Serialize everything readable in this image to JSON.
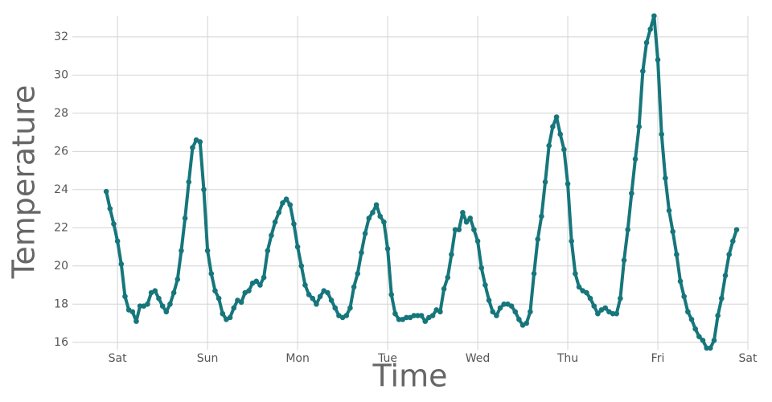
{
  "chart_data": {
    "type": "line",
    "x_label": "Time",
    "y_label": "Temperature",
    "x": [
      -3,
      -2,
      -1,
      0,
      1,
      2,
      3,
      4,
      5,
      6,
      7,
      8,
      9,
      10,
      11,
      12,
      13,
      14,
      15,
      16,
      17,
      18,
      19,
      20,
      21,
      22,
      23,
      24,
      25,
      26,
      27,
      28,
      29,
      30,
      31,
      32,
      33,
      34,
      35,
      36,
      37,
      38,
      39,
      40,
      41,
      42,
      43,
      44,
      45,
      46,
      47,
      48,
      49,
      50,
      51,
      52,
      53,
      54,
      55,
      56,
      57,
      58,
      59,
      60,
      61,
      62,
      63,
      64,
      65,
      66,
      67,
      68,
      69,
      70,
      71,
      72,
      73,
      74,
      75,
      76,
      77,
      78,
      79,
      80,
      81,
      82,
      83,
      84,
      85,
      86,
      87,
      88,
      89,
      90,
      91,
      92,
      93,
      94,
      95,
      96,
      97,
      98,
      99,
      100,
      101,
      102,
      103,
      104,
      105,
      106,
      107,
      108,
      109,
      110,
      111,
      112,
      113,
      114,
      115,
      116,
      117,
      118,
      119,
      120,
      121,
      122,
      123,
      124,
      125,
      126,
      127,
      128,
      129,
      130,
      131,
      132,
      133,
      134,
      135,
      136,
      137,
      138,
      139,
      140,
      141,
      142,
      143,
      144,
      145,
      146,
      147,
      148,
      149,
      150,
      151,
      152,
      153,
      154,
      155,
      156,
      157,
      158,
      159,
      160,
      161,
      162,
      163,
      164,
      165
    ],
    "series": [
      {
        "color": "#16767b",
        "values": [
          23.9,
          23.0,
          22.2,
          21.3,
          20.1,
          18.4,
          17.7,
          17.6,
          17.1,
          17.9,
          17.9,
          18.0,
          18.6,
          18.7,
          18.3,
          17.9,
          17.6,
          18.0,
          18.6,
          19.3,
          20.8,
          22.5,
          24.4,
          26.2,
          26.6,
          26.5,
          24.0,
          20.8,
          19.6,
          18.7,
          18.3,
          17.5,
          17.2,
          17.3,
          17.8,
          18.2,
          18.1,
          18.6,
          18.7,
          19.1,
          19.2,
          19.0,
          19.4,
          20.8,
          21.6,
          22.3,
          22.8,
          23.3,
          23.5,
          23.2,
          22.2,
          21.0,
          20.0,
          19.0,
          18.5,
          18.3,
          18.0,
          18.4,
          18.7,
          18.6,
          18.2,
          17.8,
          17.4,
          17.3,
          17.4,
          17.8,
          18.9,
          19.6,
          20.7,
          21.7,
          22.5,
          22.8,
          23.2,
          22.6,
          22.3,
          20.9,
          18.5,
          17.5,
          17.2,
          17.2,
          17.3,
          17.3,
          17.4,
          17.4,
          17.4,
          17.1,
          17.3,
          17.4,
          17.7,
          17.6,
          18.8,
          19.4,
          20.6,
          21.9,
          21.9,
          22.8,
          22.3,
          22.5,
          21.9,
          21.3,
          19.9,
          19.0,
          18.2,
          17.6,
          17.4,
          17.8,
          18.0,
          18.0,
          17.9,
          17.6,
          17.2,
          16.9,
          17.0,
          17.6,
          19.6,
          21.4,
          22.6,
          24.4,
          26.3,
          27.3,
          27.8,
          26.9,
          26.1,
          24.3,
          21.3,
          19.6,
          18.9,
          18.7,
          18.6,
          18.3,
          17.9,
          17.5,
          17.7,
          17.8,
          17.6,
          17.5,
          17.5,
          18.3,
          20.3,
          21.9,
          23.8,
          25.6,
          27.3,
          30.2,
          31.7,
          32.4,
          33.1,
          30.8,
          26.9,
          24.6,
          22.9,
          21.8,
          20.6,
          19.2,
          18.4,
          17.6,
          17.2,
          16.7,
          16.3,
          16.1,
          15.7,
          15.7,
          16.1,
          17.4,
          18.3,
          19.5,
          20.6,
          21.3,
          21.9
        ]
      }
    ],
    "xlim": [
      -5.6,
      168
    ],
    "xticks": [
      {
        "value": 0,
        "label": "Sat"
      },
      {
        "value": 24,
        "label": "Sun"
      },
      {
        "value": 48,
        "label": "Mon"
      },
      {
        "value": 72,
        "label": "Tue"
      },
      {
        "value": 96,
        "label": "Wed"
      },
      {
        "value": 120,
        "label": "Thu"
      },
      {
        "value": 144,
        "label": "Fri"
      },
      {
        "value": 168,
        "label": "Sat"
      }
    ],
    "ylim": [
      15.4,
      33.3
    ],
    "yticks": [
      16,
      18,
      20,
      22,
      24,
      26,
      28,
      30,
      32
    ],
    "grid": true
  }
}
